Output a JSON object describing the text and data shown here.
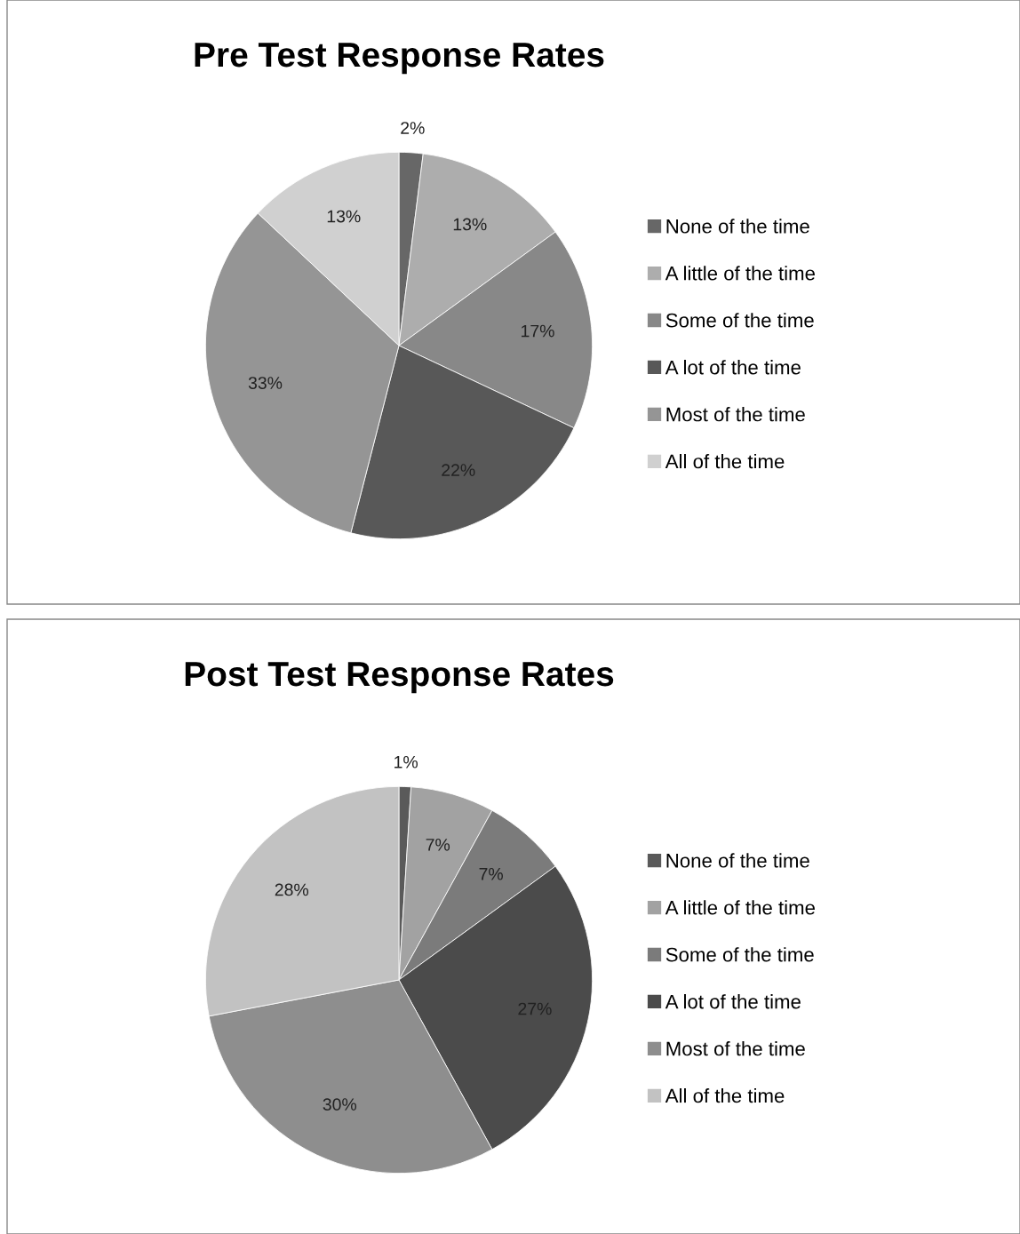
{
  "chart_data": [
    {
      "type": "pie",
      "title": "Pre Test Response Rates",
      "categories": [
        "None of the time",
        "A little of the time",
        "Some of the time",
        "A lot of the time",
        "Most of the time",
        "All of the time"
      ],
      "values": [
        2,
        13,
        17,
        22,
        33,
        13
      ],
      "value_labels": [
        "2%",
        "13%",
        "17%",
        "22%",
        "33%",
        "13%"
      ],
      "colors": [
        "#676767",
        "#adadad",
        "#888888",
        "#585858",
        "#959595",
        "#d0d0d0"
      ],
      "legend": "right"
    },
    {
      "type": "pie",
      "title": "Post Test Response Rates",
      "categories": [
        "None of the time",
        "A little of the time",
        "Some of the time",
        "A lot of the time",
        "Most of the time",
        "All of the time"
      ],
      "values": [
        1,
        7,
        7,
        27,
        30,
        28
      ],
      "value_labels": [
        "1%",
        "7%",
        "7%",
        "27%",
        "30%",
        "28%"
      ],
      "colors": [
        "#5a5a5a",
        "#a2a2a2",
        "#7b7b7b",
        "#4b4b4b",
        "#8e8e8e",
        "#c2c2c2"
      ],
      "legend": "right"
    }
  ]
}
